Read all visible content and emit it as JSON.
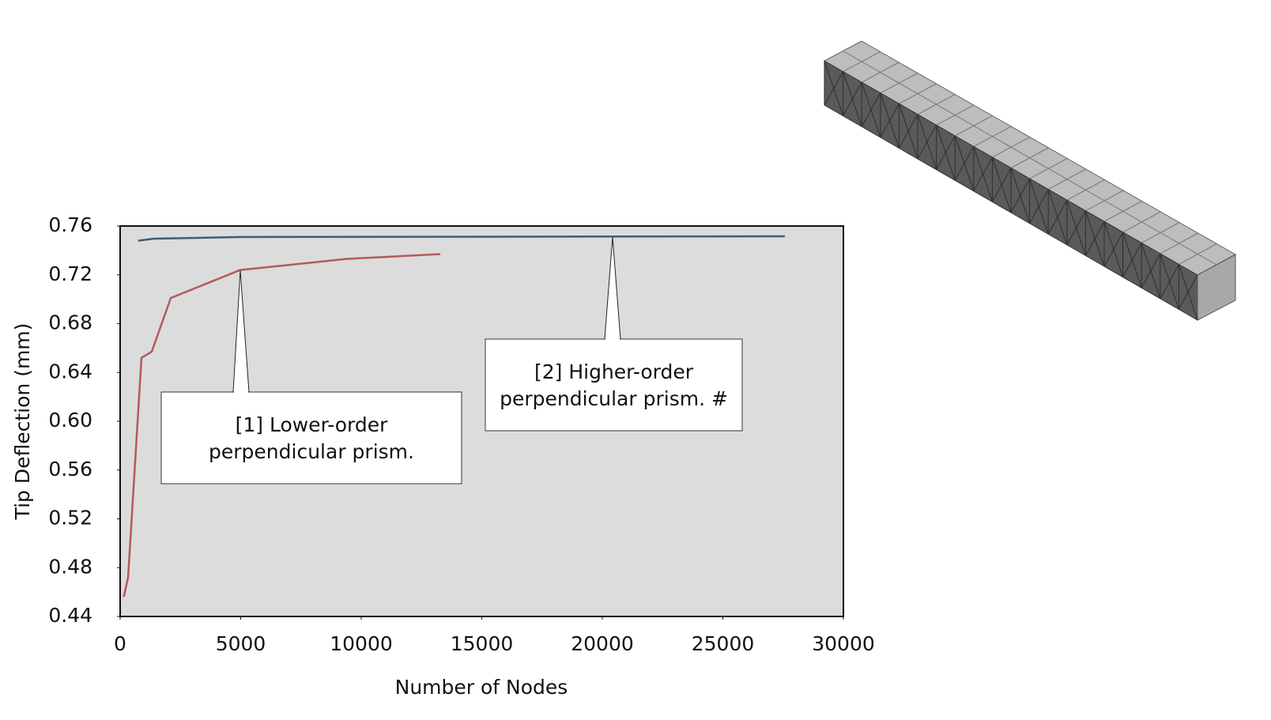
{
  "chart_data": {
    "type": "line",
    "x_label": "Number of Nodes",
    "y_label": "Tip Deflection (mm)",
    "xlim": [
      0,
      30000
    ],
    "xticks": [
      0,
      5000,
      10000,
      15000,
      20000,
      25000,
      30000
    ],
    "ylim": [
      0.44,
      0.76
    ],
    "yticks": [
      0.44,
      0.48,
      0.52,
      0.56,
      {
        "value": 0.6,
        "label": "0.60"
      },
      0.64,
      0.68,
      0.72,
      0.76
    ],
    "grid": false,
    "series": [
      {
        "color": "#b25a5c",
        "x": [
          150,
          330,
          885,
          1310,
          2100,
          4980,
          9380,
          13280
        ],
        "values": [
          0.456,
          0.472,
          0.652,
          0.657,
          0.701,
          0.724,
          0.733,
          0.737
        ]
      },
      {
        "color": "#3e5c7a",
        "x": [
          750,
          1410,
          5000,
          27570
        ],
        "values": [
          0.748,
          0.7496,
          0.751,
          0.7516
        ]
      }
    ],
    "annotations": [
      {
        "lines": [
          "[1] Lower-order",
          "perpendicular prism."
        ]
      },
      {
        "lines": [
          "[2] Higher-order",
          "perpendicular prism. #"
        ]
      }
    ]
  }
}
